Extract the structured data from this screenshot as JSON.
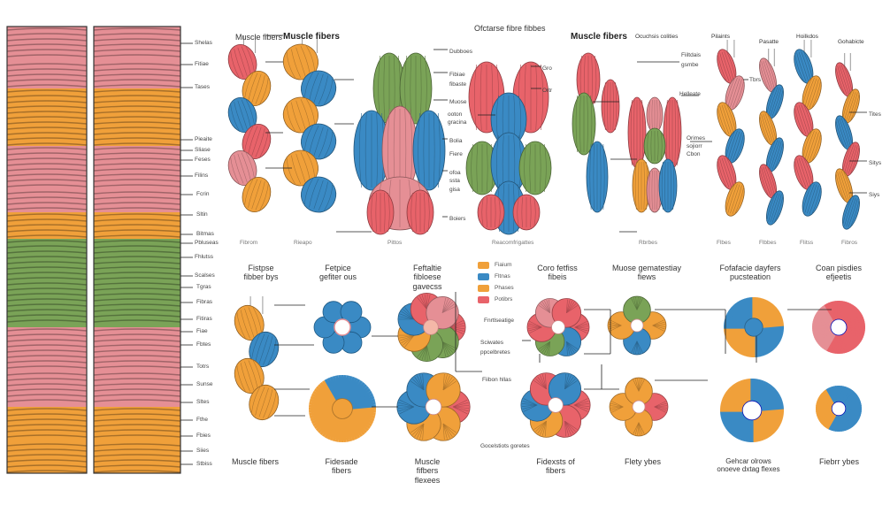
{
  "colors": {
    "red": "#e8636a",
    "pink": "#e58f95",
    "orange": "#f0a03a",
    "green": "#7aa357",
    "blue": "#3a8ac4",
    "line": "#222222"
  },
  "top_row": {
    "titles": [
      "Muscle fibers",
      "Muscle fibers",
      "Ofctarse fibre fibbes",
      "Muscle fibers",
      "Ocuchsis colities",
      "Pilaints",
      "Pasatte",
      "Hoilkdos",
      "Gohabicte"
    ],
    "side_labels": {
      "col2": [
        "Shelas",
        "Fitiae",
        "Tases",
        "Pieaite",
        "Sliase",
        "Feses",
        "Filins",
        "Fcrin",
        "Sltin",
        "Bitmas",
        "Pbluseas",
        "Fhlutss"
      ],
      "col4": [
        "Dubboes",
        "Fibiae",
        "fibaste",
        "Muose",
        "ooton",
        "gracina",
        "Bolia",
        "Fiere",
        "ofoa",
        "ssta",
        "gisa",
        "Boiers"
      ],
      "col5": [
        "Gro",
        "Ortr"
      ],
      "col7": [
        "Fiiltdais",
        "gsmbe",
        "Helleate",
        "Orimes",
        "sojiorr",
        "Cbon"
      ],
      "col10": [
        "Tites",
        "Sitys",
        "Siys"
      ],
      "col8": [
        "Tbrs"
      ]
    },
    "bottom_captions": [
      "Fibrom",
      "Rieapo",
      "Pittos",
      "Reacomfrigattes",
      "Rbrbes",
      "Flbes",
      "Flbbes",
      "Flitss",
      "Fibros"
    ]
  },
  "bottom_row": {
    "titles": [
      "Fistpse fibber bys",
      "Fetpice gefiter ous",
      "Feftaltie fibloese gavecss",
      "Coro fetfiss fibeis",
      "Muose gematestiay fiews",
      "Fofafacie dayfers pucsteation",
      "Coan pisdies efjeetis"
    ],
    "side_labels": {
      "col2": [
        "Scalses",
        "Tgras",
        "Fibras",
        "Fitiras",
        "Fiae",
        "Fbtes",
        "Totrs",
        "Sunse",
        "Sltes",
        "Fthe",
        "Fbies",
        "Siies",
        "Stbiss"
      ],
      "col4": [
        "Fnrtlseatige",
        "Sciwates",
        "ppcelbretes",
        "Fiibon hllas",
        "Gocelstiots goretes"
      ]
    },
    "legend": [
      "Fiaium",
      "Fltnas",
      "Phases",
      "Potibrs"
    ],
    "captions": [
      "Muscle fibers",
      "Fidesade fibers",
      "Muscle fifbers flexees",
      "Fidexsts of fibers",
      "Flety ybes",
      "Gehcar olrows onoeve dxtag flexes",
      "Fiebrr ybes"
    ]
  }
}
